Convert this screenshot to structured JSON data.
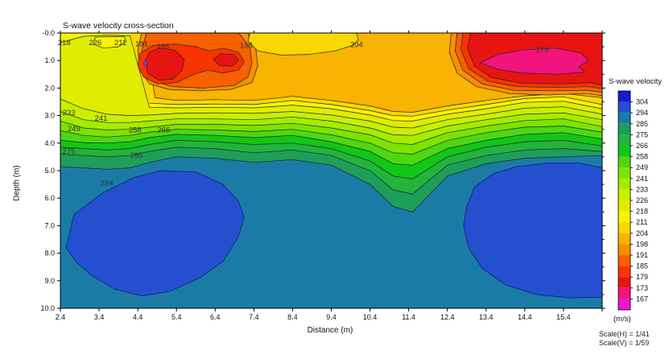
{
  "title": "S-wave velocity cross-section",
  "axes": {
    "xlabel": "Distance (m)",
    "ylabel": "Depth (m)",
    "x_range": [
      2.4,
      16.4
    ],
    "depth_range": [
      0,
      10
    ],
    "x_ticks": [
      2.4,
      3.4,
      4.4,
      5.4,
      6.4,
      7.4,
      8.4,
      9.4,
      10.4,
      11.4,
      12.4,
      13.4,
      14.4,
      15.4
    ],
    "y_tick_labels": [
      "-0.0",
      "1.0",
      "2.0",
      "3.0",
      "4.0",
      "5.0",
      "6.0",
      "7.0",
      "8.0",
      "9.0",
      "10.0"
    ]
  },
  "legend": {
    "title": "S-wave velocity",
    "unit": "(m/s)",
    "levels": [
      304,
      294,
      285,
      275,
      266,
      258,
      249,
      241,
      233,
      226,
      218,
      211,
      204,
      198,
      191,
      185,
      179,
      173,
      167
    ],
    "segment_colors": [
      "#1818d8",
      "#2450d0",
      "#1a7ca6",
      "#1e9e5a",
      "#22b43c",
      "#12c618",
      "#4cd812",
      "#7ce400",
      "#a4ec00",
      "#c8f000",
      "#e0ec00",
      "#f8f400",
      "#f8d800",
      "#f8b400",
      "#f89000",
      "#f86000",
      "#f83400",
      "#e81414",
      "#f0147c",
      "#ea14d8"
    ]
  },
  "scale_notes": {
    "h": "Scale(H) = 1/41",
    "v": "Scale(V) = 1/59"
  },
  "chart_data": {
    "type": "heatmap",
    "subtype": "contour-cross-section",
    "title": "S-wave velocity cross-section",
    "xlabel": "Distance (m)",
    "ylabel": "Depth (m)",
    "unit": "m/s",
    "xlim": [
      2.4,
      16.4
    ],
    "depth_lim": [
      0,
      10
    ],
    "background_band": {
      "range": "285-294",
      "color": "#1a7ca6"
    },
    "x_anchors": [
      2.4,
      3.0,
      3.6,
      4.2,
      4.7,
      5.4,
      6.4,
      7.4,
      8.4,
      9.4,
      10.4,
      11.0,
      11.5,
      12.4,
      13.4,
      14.4,
      15.4,
      16.4
    ],
    "horizons": [
      {
        "level": 285,
        "fill_above": "#1e9e5a",
        "depths": [
          4.85,
          4.9,
          4.95,
          4.9,
          4.7,
          4.5,
          4.55,
          4.7,
          4.6,
          4.8,
          5.5,
          6.3,
          6.5,
          5.2,
          4.75,
          4.55,
          4.5,
          4.45
        ]
      },
      {
        "level": 275,
        "fill_above": "#22b43c",
        "depths": [
          4.4,
          4.45,
          4.5,
          4.45,
          4.3,
          4.15,
          4.2,
          4.35,
          4.25,
          4.45,
          5.0,
          5.7,
          5.85,
          4.8,
          4.45,
          4.25,
          4.2,
          4.3
        ]
      },
      {
        "level": 266,
        "fill_above": "#12c618",
        "depths": [
          4.15,
          4.2,
          4.25,
          4.2,
          4.05,
          3.9,
          3.95,
          4.05,
          4.0,
          4.2,
          4.65,
          5.2,
          5.3,
          4.5,
          4.15,
          3.95,
          3.9,
          4.1
        ]
      },
      {
        "level": 258,
        "fill_above": "#4cd812",
        "depths": [
          3.9,
          3.98,
          4.0,
          3.95,
          3.8,
          3.68,
          3.72,
          3.8,
          3.72,
          3.95,
          4.3,
          4.75,
          4.8,
          4.2,
          3.9,
          3.68,
          3.62,
          3.85
        ]
      },
      {
        "level": 249,
        "fill_above": "#7ce400",
        "depths": [
          3.55,
          3.72,
          3.78,
          3.72,
          3.6,
          3.5,
          3.52,
          3.58,
          3.5,
          3.7,
          4.0,
          4.35,
          4.4,
          3.9,
          3.62,
          3.42,
          3.38,
          3.6
        ]
      },
      {
        "level": 241,
        "fill_above": "#a4ec00",
        "depths": [
          3.2,
          3.45,
          3.52,
          3.5,
          3.42,
          3.32,
          3.32,
          3.36,
          3.28,
          3.45,
          3.7,
          4.0,
          4.05,
          3.62,
          3.38,
          3.18,
          3.12,
          3.4
        ]
      },
      {
        "level": 233,
        "fill_above": "#c8f000",
        "depths": [
          2.85,
          3.15,
          3.25,
          3.25,
          3.2,
          3.12,
          3.12,
          3.15,
          3.05,
          3.2,
          3.45,
          3.7,
          3.72,
          3.38,
          3.15,
          2.95,
          2.9,
          3.15
        ]
      },
      {
        "level": 226,
        "fill_above": "#e0ec00",
        "depths": [
          2.4,
          2.75,
          2.95,
          3.0,
          2.98,
          2.92,
          2.9,
          2.92,
          2.85,
          2.98,
          3.2,
          3.42,
          3.45,
          3.15,
          2.95,
          2.73,
          2.68,
          2.95
        ]
      },
      {
        "level": 218,
        "fill_above": "#f8f400",
        "depths": [
          0.35,
          0.12,
          0.08,
          0.1,
          2.7,
          2.72,
          2.7,
          2.72,
          2.62,
          2.75,
          2.98,
          3.18,
          3.2,
          2.95,
          2.75,
          2.52,
          2.48,
          2.75
        ]
      },
      {
        "level": 211,
        "fill_above": "#f8d800",
        "depths": [
          0,
          0,
          0,
          0,
          2.55,
          2.6,
          2.58,
          2.6,
          2.45,
          2.6,
          2.82,
          3.0,
          3.02,
          2.8,
          2.6,
          2.38,
          2.32,
          2.6
        ]
      }
    ],
    "fast_blobs": {
      "band": "294-304",
      "color": "#2450d0",
      "stroke": "#14247a",
      "left": [
        [
          2.55,
          7.8
        ],
        [
          2.75,
          6.6
        ],
        [
          3.5,
          5.8
        ],
        [
          4.3,
          5.25
        ],
        [
          5.0,
          5.0
        ],
        [
          5.9,
          5.05
        ],
        [
          6.6,
          5.5
        ],
        [
          7.0,
          6.1
        ],
        [
          7.15,
          6.7
        ],
        [
          7.0,
          7.4
        ],
        [
          6.6,
          8.3
        ],
        [
          6.0,
          8.9
        ],
        [
          5.2,
          9.4
        ],
        [
          4.5,
          9.55
        ],
        [
          3.8,
          9.3
        ],
        [
          3.2,
          8.8
        ],
        [
          2.8,
          8.3
        ]
      ],
      "right": [
        [
          12.9,
          6.3
        ],
        [
          13.1,
          5.6
        ],
        [
          13.6,
          5.1
        ],
        [
          14.2,
          4.85
        ],
        [
          15.0,
          4.72
        ],
        [
          15.8,
          4.72
        ],
        [
          16.4,
          4.9
        ],
        [
          16.4,
          9.6
        ],
        [
          15.6,
          9.62
        ],
        [
          14.7,
          9.5
        ],
        [
          13.9,
          9.15
        ],
        [
          13.3,
          8.55
        ],
        [
          12.95,
          7.8
        ],
        [
          12.82,
          7.0
        ]
      ]
    },
    "surface_shapes": [
      {
        "name": "orange-base-198-204",
        "color": "#f8b400",
        "points": [
          [
            4.55,
            0
          ],
          [
            4.85,
            2.35
          ],
          [
            5.4,
            2.45
          ],
          [
            6.4,
            2.42
          ],
          [
            7.4,
            2.45
          ],
          [
            8.4,
            2.3
          ],
          [
            9.4,
            2.45
          ],
          [
            10.4,
            2.65
          ],
          [
            11.0,
            2.85
          ],
          [
            11.5,
            2.88
          ],
          [
            12.4,
            2.65
          ],
          [
            13.4,
            2.45
          ],
          [
            14.4,
            2.28
          ],
          [
            15.4,
            2.2
          ],
          [
            16.4,
            2.35
          ],
          [
            16.4,
            0
          ]
        ]
      },
      {
        "name": "left-ring-191-198",
        "color": "#f89000",
        "points": [
          [
            4.5,
            0
          ],
          [
            4.4,
            0.6
          ],
          [
            4.45,
            1.3
          ],
          [
            4.7,
            1.85
          ],
          [
            5.2,
            2.05
          ],
          [
            6.0,
            2.1
          ],
          [
            6.8,
            2.05
          ],
          [
            7.35,
            1.8
          ],
          [
            7.5,
            1.2
          ],
          [
            7.45,
            0.6
          ],
          [
            7.28,
            0.2
          ],
          [
            7.25,
            0
          ]
        ]
      },
      {
        "name": "left-ring-185-191",
        "color": "#f86000",
        "points": [
          [
            4.62,
            0
          ],
          [
            4.5,
            0.7
          ],
          [
            4.55,
            1.3
          ],
          [
            4.8,
            1.75
          ],
          [
            5.3,
            1.95
          ],
          [
            6.1,
            2.0
          ],
          [
            6.9,
            1.9
          ],
          [
            7.25,
            1.6
          ],
          [
            7.35,
            1.1
          ],
          [
            7.3,
            0.55
          ],
          [
            7.1,
            0.15
          ],
          [
            7.0,
            0
          ]
        ]
      },
      {
        "name": "left-ring-179-185",
        "color": "#f83400",
        "points": [
          [
            4.45,
            0.75
          ],
          [
            4.4,
            1.2
          ],
          [
            4.55,
            1.6
          ],
          [
            4.9,
            1.85
          ],
          [
            5.4,
            1.8
          ],
          [
            5.85,
            1.5
          ],
          [
            6.2,
            1.35
          ],
          [
            6.6,
            1.45
          ],
          [
            7.0,
            1.35
          ],
          [
            7.15,
            1.05
          ],
          [
            7.0,
            0.7
          ],
          [
            6.6,
            0.55
          ],
          [
            6.25,
            0.65
          ],
          [
            5.9,
            0.5
          ],
          [
            5.4,
            0.4
          ],
          [
            4.8,
            0.45
          ]
        ]
      },
      {
        "name": "red-blob-left-173-179",
        "color": "#e81414",
        "points": [
          [
            4.6,
            1.0
          ],
          [
            4.65,
            1.45
          ],
          [
            4.95,
            1.72
          ],
          [
            5.3,
            1.68
          ],
          [
            5.55,
            1.35
          ],
          [
            5.6,
            0.95
          ],
          [
            5.35,
            0.62
          ],
          [
            4.95,
            0.55
          ],
          [
            4.7,
            0.7
          ]
        ]
      },
      {
        "name": "red-blob-right-173-179",
        "color": "#e81414",
        "points": [
          [
            6.35,
            0.95
          ],
          [
            6.5,
            1.18
          ],
          [
            6.85,
            1.2
          ],
          [
            7.0,
            1.0
          ],
          [
            6.9,
            0.78
          ],
          [
            6.55,
            0.75
          ]
        ]
      },
      {
        "name": "mid-yellow-patch-204-211",
        "color": "#f8d800",
        "points": [
          [
            7.3,
            0
          ],
          [
            7.25,
            0.3
          ],
          [
            7.5,
            0.65
          ],
          [
            8.1,
            0.8
          ],
          [
            8.8,
            0.78
          ],
          [
            9.5,
            0.65
          ],
          [
            9.95,
            0.45
          ],
          [
            10.1,
            0.25
          ],
          [
            10.05,
            0
          ]
        ]
      },
      {
        "name": "left-patch-notch-211-218",
        "color": "#f8f400",
        "points": [
          [
            3.3,
            0.15
          ],
          [
            3.25,
            0.4
          ],
          [
            3.5,
            0.55
          ],
          [
            3.9,
            0.5
          ],
          [
            4.1,
            0.3
          ],
          [
            4.05,
            0.12
          ]
        ]
      },
      {
        "name": "right-ring-191-198",
        "color": "#f89000",
        "points": [
          [
            12.5,
            0
          ],
          [
            12.45,
            0.7
          ],
          [
            12.65,
            1.45
          ],
          [
            13.15,
            1.95
          ],
          [
            14.0,
            2.2
          ],
          [
            15.0,
            2.25
          ],
          [
            16.0,
            2.2
          ],
          [
            16.4,
            2.28
          ],
          [
            16.4,
            0
          ]
        ]
      },
      {
        "name": "right-ring-185-191",
        "color": "#f86000",
        "points": [
          [
            12.65,
            0
          ],
          [
            12.6,
            0.65
          ],
          [
            12.8,
            1.35
          ],
          [
            13.3,
            1.85
          ],
          [
            14.1,
            2.08
          ],
          [
            15.1,
            2.1
          ],
          [
            16.0,
            2.08
          ],
          [
            16.4,
            2.15
          ],
          [
            16.4,
            0
          ]
        ]
      },
      {
        "name": "right-ring-179-185",
        "color": "#f83400",
        "points": [
          [
            12.8,
            0
          ],
          [
            12.75,
            0.6
          ],
          [
            12.95,
            1.3
          ],
          [
            13.45,
            1.75
          ],
          [
            14.2,
            1.95
          ],
          [
            15.2,
            1.98
          ],
          [
            16.05,
            1.95
          ],
          [
            16.4,
            2.02
          ],
          [
            16.4,
            0
          ]
        ]
      },
      {
        "name": "right-red-zone-173-179",
        "color": "#e81414",
        "points": [
          [
            13.0,
            0
          ],
          [
            12.92,
            0.55
          ],
          [
            13.1,
            1.2
          ],
          [
            13.55,
            1.62
          ],
          [
            14.3,
            1.82
          ],
          [
            15.3,
            1.85
          ],
          [
            16.1,
            1.8
          ],
          [
            16.4,
            1.9
          ],
          [
            16.4,
            0
          ]
        ]
      },
      {
        "name": "pink-blob-167-173",
        "color": "#f0147c",
        "points": [
          [
            13.25,
            1.08
          ],
          [
            13.7,
            0.78
          ],
          [
            14.3,
            0.62
          ],
          [
            15.2,
            0.55
          ],
          [
            15.85,
            0.72
          ],
          [
            16.05,
            1.0
          ],
          [
            15.8,
            1.22
          ],
          [
            15.95,
            1.42
          ],
          [
            15.2,
            1.5
          ],
          [
            14.3,
            1.45
          ],
          [
            13.7,
            1.32
          ]
        ]
      }
    ],
    "min_marker": {
      "x": 4.6,
      "depth": 1.1,
      "color": "#8040c0"
    },
    "contour_labels": [
      {
        "text": "218",
        "x": 2.5,
        "depth": 0.35
      },
      {
        "text": "226",
        "x": 3.3,
        "depth": 0.35
      },
      {
        "text": "211",
        "x": 3.95,
        "depth": 0.35
      },
      {
        "text": "191",
        "x": 4.5,
        "depth": 0.4
      },
      {
        "text": "185",
        "x": 5.05,
        "depth": 0.5
      },
      {
        "text": "198",
        "x": 7.2,
        "depth": 0.45
      },
      {
        "text": "204",
        "x": 10.05,
        "depth": 0.42
      },
      {
        "text": "179",
        "x": 14.85,
        "depth": 0.62
      },
      {
        "text": "233",
        "x": 2.62,
        "depth": 2.9
      },
      {
        "text": "241",
        "x": 3.45,
        "depth": 3.1
      },
      {
        "text": "249",
        "x": 2.75,
        "depth": 3.48
      },
      {
        "text": "258",
        "x": 4.33,
        "depth": 3.52
      },
      {
        "text": "266",
        "x": 5.07,
        "depth": 3.52
      },
      {
        "text": "275",
        "x": 2.62,
        "depth": 4.3
      },
      {
        "text": "285",
        "x": 4.37,
        "depth": 4.45
      },
      {
        "text": "294",
        "x": 3.6,
        "depth": 5.45
      }
    ]
  }
}
